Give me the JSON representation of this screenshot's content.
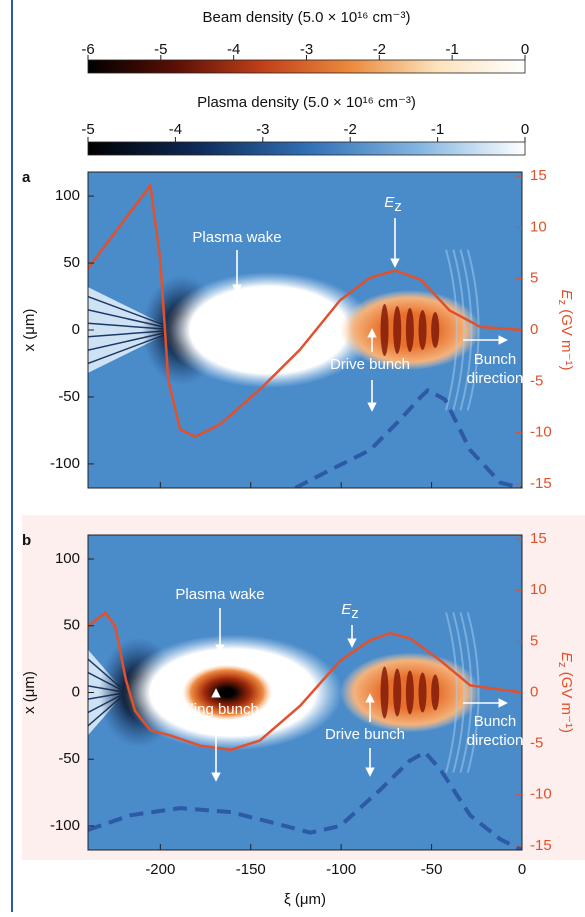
{
  "colorbars": [
    {
      "title": "Beam density (5.0 × 10¹⁶ cm⁻³)",
      "lim": [
        -6,
        0
      ],
      "ticks": [
        -6,
        -5,
        -4,
        -3,
        -2,
        -1,
        0
      ],
      "colors": [
        "#000000",
        "#5a0f05",
        "#c1401a",
        "#eb8a3c",
        "#fbe3bd",
        "#ffffff"
      ]
    },
    {
      "title": "Plasma density (5.0 × 10¹⁶ cm⁻³)",
      "lim": [
        -5,
        0
      ],
      "ticks": [
        -5,
        -4,
        -3,
        -2,
        -1,
        0
      ],
      "colors": [
        "#000000",
        "#0f2a57",
        "#2f6fb4",
        "#80b3e0",
        "#ffffff"
      ]
    }
  ],
  "chart_data": [
    {
      "type": "line",
      "label": "a",
      "xlim": [
        -240,
        0
      ],
      "xticks": [
        -200,
        -150,
        -100,
        -50,
        0
      ],
      "xtick_labels": false,
      "ylim": [
        -118,
        118
      ],
      "yticks": [
        -100,
        -50,
        0,
        50,
        100
      ],
      "ylabel": "x (μm)",
      "y2lim": [
        -15.4,
        15.4
      ],
      "y2ticks": [
        -15,
        -10,
        -5,
        0,
        5,
        10,
        15
      ],
      "y2label": [
        "E",
        "z",
        " (GV m⁻¹)"
      ],
      "series": [
        {
          "axis": "y2",
          "color": "#e2502c",
          "x": [
            -240,
            -205.5,
            -200,
            -195.6,
            -189,
            -180.7,
            -167,
            -145,
            -122.7,
            -100.6,
            -84,
            -70,
            -56,
            -40,
            -23,
            0
          ],
          "values": [
            6.0,
            14.1,
            6.8,
            -4.9,
            -9.7,
            -10.4,
            -9.2,
            -5.8,
            -1.9,
            2.9,
            5.1,
            5.8,
            4.9,
            1.9,
            0.3,
            0
          ]
        },
        {
          "color": "#2d5aa6",
          "dash": true,
          "x": [
            -125.4,
            -106,
            -84,
            -67.4,
            -56,
            -52,
            -42.5,
            -28.7,
            -12,
            0
          ],
          "values": [
            -118,
            -104.5,
            -89.6,
            -67,
            -50,
            -45,
            -52,
            -89.6,
            -114,
            -118
          ]
        }
      ],
      "annotations": [
        {
          "text": "Plasma wake"
        },
        {
          "text": [
            "E",
            "z"
          ]
        },
        {
          "text": "Drive bunch"
        },
        {
          "text": [
            "Bunch",
            "direction"
          ]
        }
      ]
    },
    {
      "type": "line",
      "label": "b",
      "xlim": [
        -240,
        0
      ],
      "xticks": [
        -200,
        -150,
        -100,
        -50,
        0
      ],
      "xlabel": "ξ (μm)",
      "ylim": [
        -118,
        118
      ],
      "yticks": [
        -100,
        -50,
        0,
        50,
        100
      ],
      "ylabel": "x (μm)",
      "y2lim": [
        -15.4,
        15.4
      ],
      "y2ticks": [
        -15,
        -10,
        -5,
        0,
        5,
        10,
        15
      ],
      "y2label": [
        "E",
        "z",
        " (GV m⁻¹)"
      ],
      "series": [
        {
          "axis": "y2",
          "color": "#e2502c",
          "x": [
            -240,
            -230.4,
            -225,
            -219,
            -214,
            -205.5,
            -194.5,
            -178,
            -161,
            -145,
            -122.7,
            -100.6,
            -84,
            -73,
            -62,
            -45,
            -28.7,
            0
          ],
          "values": [
            6.5,
            7.8,
            6.5,
            1.2,
            -1.8,
            -3.7,
            -4.2,
            -5.2,
            -5.6,
            -4.7,
            -1.3,
            3.1,
            5.1,
            5.8,
            5.3,
            3.1,
            0.7,
            0
          ]
        },
        {
          "color": "#2d5aa6",
          "dash": true,
          "x": [
            -240,
            -216.6,
            -189,
            -161,
            -133.7,
            -117,
            -100.6,
            -78.5,
            -62,
            -53.6,
            -45,
            -28.7,
            -12,
            0
          ],
          "values": [
            -103,
            -92,
            -86.6,
            -89.6,
            -99,
            -105,
            -100,
            -73,
            -51,
            -44.8,
            -58,
            -92,
            -110,
            -118
          ]
        }
      ],
      "annotations": [
        {
          "text": "Plasma wake"
        },
        {
          "text": [
            "E",
            "z"
          ]
        },
        {
          "text": "Trailing bunch"
        },
        {
          "text": "Drive bunch"
        },
        {
          "text": [
            "Bunch",
            "direction"
          ]
        }
      ]
    }
  ]
}
